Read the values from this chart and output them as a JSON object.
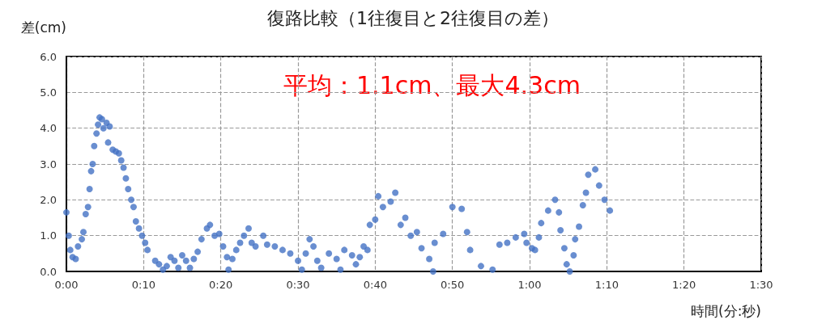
{
  "chart_data": {
    "type": "scatter",
    "title": "復路比較（1往復目と2往復目の差）",
    "xlabel": "時間(分:秒)",
    "ylabel": "差(cm)",
    "annotations": [
      "平均：1.1cm、最大4.3cm"
    ],
    "xlim": [
      0,
      90
    ],
    "ylim": [
      0,
      6
    ],
    "xticks": [
      {
        "value": 0,
        "label": "0:00"
      },
      {
        "value": 10,
        "label": "0:10"
      },
      {
        "value": 20,
        "label": "0:20"
      },
      {
        "value": 30,
        "label": "0:30"
      },
      {
        "value": 40,
        "label": "0:40"
      },
      {
        "value": 50,
        "label": "0:50"
      },
      {
        "value": 60,
        "label": "1:00"
      },
      {
        "value": 70,
        "label": "1:10"
      },
      {
        "value": 80,
        "label": "1:20"
      },
      {
        "value": 90,
        "label": "1:30"
      }
    ],
    "yticks": [
      {
        "value": 0,
        "label": "0.0"
      },
      {
        "value": 1,
        "label": "1.0"
      },
      {
        "value": 2,
        "label": "2.0"
      },
      {
        "value": 3,
        "label": "3.0"
      },
      {
        "value": 4,
        "label": "4.0"
      },
      {
        "value": 5,
        "label": "5.0"
      },
      {
        "value": 6,
        "label": "6.0"
      }
    ],
    "grid": true,
    "marker": "circle",
    "series": [
      {
        "color": "#4472c4",
        "x": [
          0,
          0.3,
          0.5,
          0.8,
          1.2,
          1.5,
          2,
          2.2,
          2.5,
          2.8,
          3,
          3.2,
          3.4,
          3.6,
          3.9,
          4.1,
          4.3,
          4.6,
          4.8,
          5.2,
          5.4,
          5.6,
          6,
          6.4,
          6.8,
          7.1,
          7.4,
          7.7,
          8,
          8.4,
          8.7,
          9,
          9.4,
          9.8,
          10.2,
          10.5,
          11.5,
          12,
          12.5,
          13,
          13.5,
          14,
          14.5,
          15,
          15.5,
          16,
          16.5,
          17,
          17.5,
          18.2,
          18.6,
          19.2,
          19.8,
          20.3,
          20.8,
          21,
          21.5,
          22,
          22.5,
          23,
          23.6,
          24,
          24.5,
          25.5,
          26,
          27,
          28,
          29,
          30,
          30.5,
          31,
          31.5,
          32,
          32.5,
          33,
          34,
          35,
          35.5,
          36,
          37,
          37.5,
          38,
          38.5,
          39,
          39.3,
          40,
          40.4,
          41,
          42,
          42.6,
          43.3,
          43.9,
          44.6,
          45.4,
          46,
          47,
          47.5,
          47.7,
          48.8,
          50,
          51.2,
          51.9,
          52.3,
          53.7,
          55.2,
          56.1,
          57.1,
          58.2,
          59.3,
          59.6,
          60.3,
          60.7,
          61.2,
          61.5,
          62.4,
          63.3,
          63.8,
          64,
          64.5,
          64.8,
          65.2,
          65.7,
          65.9,
          66.4,
          66.9,
          67.3,
          67.6,
          68.5,
          69,
          69.7,
          70.4
        ],
        "values": [
          1.65,
          1.0,
          0.6,
          0.4,
          0.35,
          0.7,
          0.9,
          1.1,
          1.6,
          1.8,
          2.3,
          2.8,
          3.0,
          3.5,
          3.85,
          4.1,
          4.3,
          4.25,
          4.0,
          4.15,
          3.6,
          4.05,
          3.4,
          3.35,
          3.3,
          3.1,
          2.9,
          2.6,
          2.3,
          2.0,
          1.8,
          1.4,
          1.2,
          1.0,
          0.8,
          0.6,
          0.3,
          0.2,
          0.05,
          0.15,
          0.4,
          0.3,
          0.1,
          0.45,
          0.3,
          0.1,
          0.35,
          0.55,
          0.9,
          1.2,
          1.3,
          1.0,
          1.05,
          0.7,
          0.4,
          0.05,
          0.35,
          0.6,
          0.8,
          1.0,
          1.2,
          0.8,
          0.7,
          1.0,
          0.75,
          0.7,
          0.6,
          0.5,
          0.3,
          0.05,
          0.5,
          0.9,
          0.7,
          0.3,
          0.1,
          0.5,
          0.35,
          0.05,
          0.6,
          0.45,
          0.2,
          0.4,
          0.7,
          0.6,
          1.3,
          1.45,
          2.1,
          1.8,
          1.95,
          2.2,
          1.3,
          1.5,
          1.0,
          1.1,
          0.65,
          0.35,
          0.0,
          0.8,
          1.05,
          1.8,
          1.75,
          1.1,
          0.6,
          0.15,
          0.05,
          0.75,
          0.8,
          0.95,
          1.05,
          0.8,
          0.65,
          0.6,
          0.95,
          1.35,
          1.7,
          2.0,
          1.65,
          1.15,
          0.65,
          0.2,
          0.0,
          0.45,
          0.9,
          1.25,
          1.85,
          2.2,
          2.7,
          2.85,
          2.4,
          2.0,
          1.7
        ]
      }
    ]
  }
}
